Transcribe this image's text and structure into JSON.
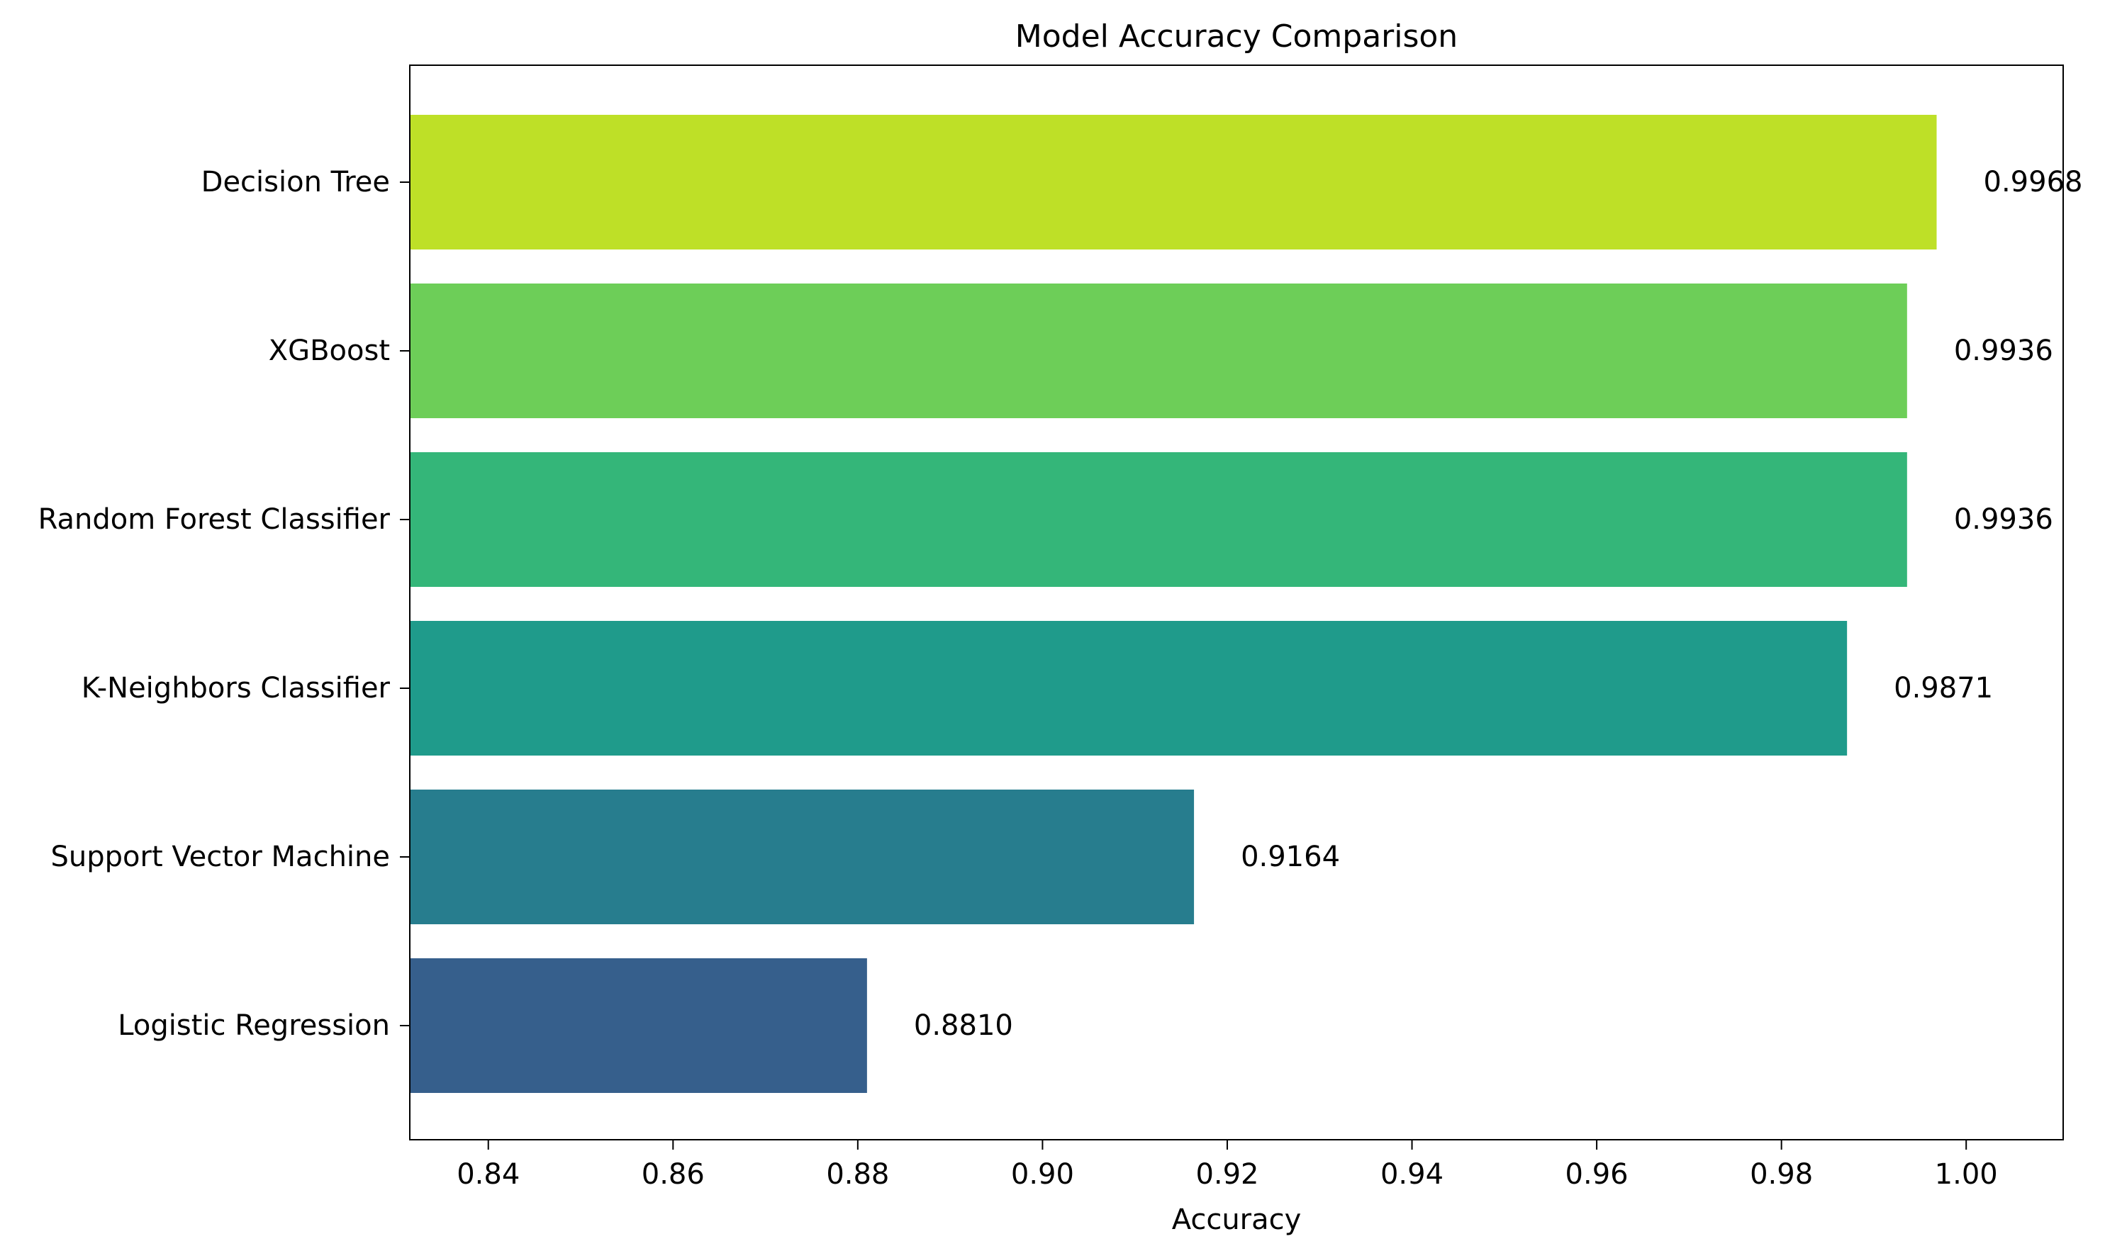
{
  "chart_data": {
    "type": "bar",
    "orientation": "horizontal",
    "title": "Model Accuracy Comparison",
    "xlabel": "Accuracy",
    "ylabel": "",
    "xlim": [
      0.8315,
      1.0105
    ],
    "x_ticks": [
      "0.84",
      "0.86",
      "0.88",
      "0.90",
      "0.92",
      "0.94",
      "0.96",
      "0.98",
      "1.00"
    ],
    "categories": [
      "Logistic Regression",
      "Support Vector Machine",
      "K-Neighbors Classifier",
      "Random Forest Classifier",
      "XGBoost",
      "Decision Tree"
    ],
    "values": [
      0.881,
      0.9164,
      0.9871,
      0.9936,
      0.9936,
      0.9968
    ],
    "data_labels": [
      "0.8810",
      "0.9164",
      "0.9871",
      "0.9936",
      "0.9936",
      "0.9968"
    ],
    "colors": [
      "#365f8c",
      "#277d8e",
      "#1f9b8b",
      "#34b679",
      "#6dce58",
      "#bee027"
    ],
    "grid": false,
    "legend": "none"
  }
}
